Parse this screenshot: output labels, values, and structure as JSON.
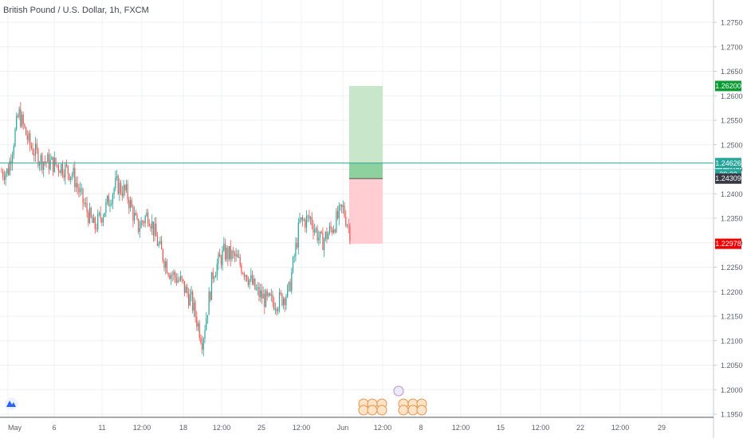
{
  "header": {
    "title": "British Pound / U.S. Dollar, 1h, FXCM"
  },
  "colors": {
    "up_candle": "#26a69a",
    "down_candle": "#ef5350",
    "grid": "#eef0f3",
    "axis_text": "#5d606b",
    "price_line": "#26a69a",
    "target_zone": "#c8e6c9",
    "stop_zone": "#ffcdd2",
    "target_badge": "#089b31",
    "stop_badge": "#f00000",
    "current_badge": "#26a69a",
    "entry_badge": "#363a45"
  },
  "price_axis": {
    "ticks": [
      "1.27500",
      "1.27000",
      "1.26500",
      "1.26000",
      "1.25500",
      "1.25000",
      "1.24500",
      "1.24000",
      "1.23500",
      "1.23000",
      "1.22500",
      "1.22000",
      "1.21500",
      "1.21000",
      "1.20500",
      "1.20000",
      "1.19500"
    ],
    "badges": {
      "target": "1.26200",
      "current": "1.24626",
      "countdown": "39:22",
      "entry": "1.24309",
      "stop": "1.22978"
    }
  },
  "time_axis": {
    "labels": [
      "May",
      "6",
      "11",
      "12:00",
      "18",
      "12:00",
      "25",
      "12:00",
      "Jun",
      "12:00",
      "8",
      "12:00",
      "15",
      "12:00",
      "22",
      "12:00",
      "29"
    ]
  },
  "chart_data": {
    "type": "candlestick",
    "title": "British Pound / U.S. Dollar, 1h, FXCM",
    "symbol": "GBPUSD",
    "interval": "1h",
    "ylim": [
      1.195,
      1.28
    ],
    "x_labels": [
      "May",
      "6",
      "11",
      "12:00",
      "18",
      "12:00",
      "25",
      "12:00",
      "Jun",
      "12:00",
      "8",
      "12:00",
      "15",
      "12:00",
      "22",
      "12:00",
      "29"
    ],
    "close_path": [
      {
        "day": 0,
        "price": 1.2445
      },
      {
        "day": 1,
        "price": 1.2565
      },
      {
        "day": 2,
        "price": 1.25
      },
      {
        "day": 3,
        "price": 1.247
      },
      {
        "day": 5,
        "price": 1.2455
      },
      {
        "day": 6,
        "price": 1.244
      },
      {
        "day": 7,
        "price": 1.238
      },
      {
        "day": 8,
        "price": 1.233
      },
      {
        "day": 9,
        "price": 1.237
      },
      {
        "day": 10,
        "price": 1.242
      },
      {
        "day": 11,
        "price": 1.24
      },
      {
        "day": 12,
        "price": 1.233
      },
      {
        "day": 13,
        "price": 1.236
      },
      {
        "day": 14,
        "price": 1.229
      },
      {
        "day": 15,
        "price": 1.224
      },
      {
        "day": 16,
        "price": 1.222
      },
      {
        "day": 17,
        "price": 1.218
      },
      {
        "day": 18,
        "price": 1.21
      },
      {
        "day": 19,
        "price": 1.224
      },
      {
        "day": 20,
        "price": 1.228
      },
      {
        "day": 21,
        "price": 1.227
      },
      {
        "day": 22,
        "price": 1.224
      },
      {
        "day": 23,
        "price": 1.22
      },
      {
        "day": 24,
        "price": 1.218
      },
      {
        "day": 25,
        "price": 1.218
      },
      {
        "day": 26,
        "price": 1.22
      },
      {
        "day": 27,
        "price": 1.234
      },
      {
        "day": 28,
        "price": 1.235
      },
      {
        "day": 29,
        "price": 1.23
      },
      {
        "day": 30,
        "price": 1.233
      },
      {
        "day": 31,
        "price": 1.237
      },
      {
        "day": 32,
        "price": 1.23
      },
      {
        "day": 33,
        "price": 1.239
      },
      {
        "day": 34,
        "price": 1.243
      }
    ],
    "current_price": 1.24626,
    "position": {
      "entry": 1.24309,
      "target": 1.262,
      "stop": 1.22978
    },
    "grid": true
  }
}
